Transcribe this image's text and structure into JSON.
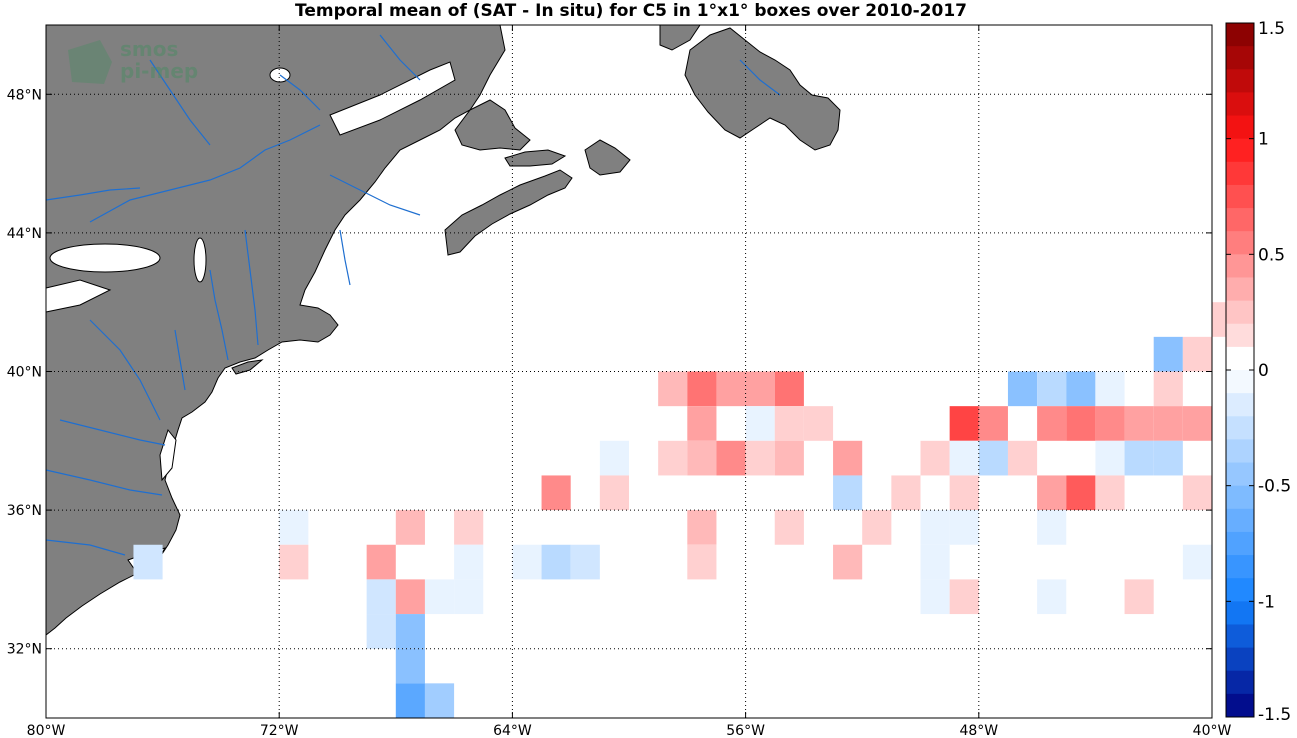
{
  "title": "Temporal mean of (SAT - In situ) for C5 in 1°x1° boxes over 2010-2017",
  "watermark": {
    "line1": "smos",
    "line2": "pi-mep"
  },
  "map": {
    "lon_range": [
      -80,
      -40
    ],
    "lat_range": [
      30,
      50
    ],
    "lon_ticks": [
      -80,
      -72,
      -64,
      -56,
      -48,
      -40
    ],
    "lat_ticks": [
      32,
      36,
      40,
      44,
      48
    ],
    "lon_tick_labels": [
      "80°W",
      "72°W",
      "64°W",
      "56°W",
      "48°W",
      "40°W"
    ],
    "lat_tick_labels": [
      "32°N",
      "36°N",
      "40°N",
      "44°N",
      "48°N"
    ],
    "land_color": "#808080",
    "river_color": "#1f6fd0",
    "ocean_color": "#ffffff"
  },
  "colorbar": {
    "range": [
      -1.5,
      1.5
    ],
    "step": 0.1,
    "tick_values": [
      1.5,
      1,
      0.5,
      0,
      -0.5,
      -1,
      -1.5
    ],
    "tick_labels": [
      "1.5",
      "1",
      "0.5",
      "0",
      "-0.5",
      "-1",
      "-1.5"
    ]
  },
  "chart_data": {
    "type": "heatmap",
    "title": "Temporal mean of (SAT - In situ) for C5 in 1°x1° boxes over 2010-2017",
    "units_note": "",
    "cells": [
      {
        "lon": -58.5,
        "lat": 39.5,
        "value": 0.3
      },
      {
        "lon": -57.5,
        "lat": 39.5,
        "value": 0.6
      },
      {
        "lon": -56.5,
        "lat": 39.5,
        "value": 0.4
      },
      {
        "lon": -55.5,
        "lat": 39.5,
        "value": 0.4
      },
      {
        "lon": -54.5,
        "lat": 39.5,
        "value": 0.6
      },
      {
        "lon": -57.5,
        "lat": 38.5,
        "value": 0.4
      },
      {
        "lon": -55.5,
        "lat": 38.5,
        "value": -0.1
      },
      {
        "lon": -54.5,
        "lat": 38.5,
        "value": 0.2
      },
      {
        "lon": -53.5,
        "lat": 38.5,
        "value": 0.2
      },
      {
        "lon": -60.5,
        "lat": 37.5,
        "value": -0.1
      },
      {
        "lon": -58.5,
        "lat": 37.5,
        "value": 0.2
      },
      {
        "lon": -57.5,
        "lat": 37.5,
        "value": 0.3
      },
      {
        "lon": -56.5,
        "lat": 37.5,
        "value": 0.5
      },
      {
        "lon": -55.5,
        "lat": 37.5,
        "value": 0.2
      },
      {
        "lon": -54.5,
        "lat": 37.5,
        "value": 0.3
      },
      {
        "lon": -52.5,
        "lat": 37.5,
        "value": 0.4
      },
      {
        "lon": -62.5,
        "lat": 36.5,
        "value": 0.5
      },
      {
        "lon": -60.5,
        "lat": 36.5,
        "value": 0.2
      },
      {
        "lon": -52.5,
        "lat": 36.5,
        "value": -0.3
      },
      {
        "lon": -50.5,
        "lat": 36.5,
        "value": 0.2
      },
      {
        "lon": -57.5,
        "lat": 35.5,
        "value": 0.3
      },
      {
        "lon": -54.5,
        "lat": 35.5,
        "value": 0.2
      },
      {
        "lon": -51.5,
        "lat": 35.5,
        "value": 0.2
      },
      {
        "lon": -71.5,
        "lat": 35.5,
        "value": -0.1
      },
      {
        "lon": -67.5,
        "lat": 35.5,
        "value": 0.3
      },
      {
        "lon": -65.5,
        "lat": 35.5,
        "value": 0.2
      },
      {
        "lon": -76.5,
        "lat": 34.5,
        "value": -0.2
      },
      {
        "lon": -71.5,
        "lat": 34.5,
        "value": 0.2
      },
      {
        "lon": -68.5,
        "lat": 34.5,
        "value": 0.4
      },
      {
        "lon": -65.5,
        "lat": 34.5,
        "value": -0.1
      },
      {
        "lon": -63.5,
        "lat": 34.5,
        "value": -0.1
      },
      {
        "lon": -62.5,
        "lat": 34.5,
        "value": -0.3
      },
      {
        "lon": -61.5,
        "lat": 34.5,
        "value": -0.2
      },
      {
        "lon": -57.5,
        "lat": 34.5,
        "value": 0.2
      },
      {
        "lon": -52.5,
        "lat": 34.5,
        "value": 0.3
      },
      {
        "lon": -68.5,
        "lat": 33.5,
        "value": -0.2
      },
      {
        "lon": -67.5,
        "lat": 33.5,
        "value": 0.4
      },
      {
        "lon": -66.5,
        "lat": 33.5,
        "value": -0.1
      },
      {
        "lon": -65.5,
        "lat": 33.5,
        "value": -0.1
      },
      {
        "lon": -68.5,
        "lat": 32.5,
        "value": -0.2
      },
      {
        "lon": -67.5,
        "lat": 32.5,
        "value": -0.5
      },
      {
        "lon": -67.5,
        "lat": 31.5,
        "value": -0.5
      },
      {
        "lon": -67.5,
        "lat": 30.5,
        "value": -0.7
      },
      {
        "lon": -66.5,
        "lat": 30.5,
        "value": -0.4
      },
      {
        "lon": -41.5,
        "lat": 40.5,
        "value": -0.5
      },
      {
        "lon": -40.5,
        "lat": 40.5,
        "value": 0.2
      },
      {
        "lon": -39.5,
        "lat": 41.5,
        "value": 0.2
      },
      {
        "lon": -46.5,
        "lat": 39.5,
        "value": -0.5
      },
      {
        "lon": -45.5,
        "lat": 39.5,
        "value": -0.3
      },
      {
        "lon": -44.5,
        "lat": 39.5,
        "value": -0.5
      },
      {
        "lon": -43.5,
        "lat": 39.5,
        "value": -0.1
      },
      {
        "lon": -41.5,
        "lat": 39.5,
        "value": 0.2
      },
      {
        "lon": -48.5,
        "lat": 38.5,
        "value": 0.8
      },
      {
        "lon": -47.5,
        "lat": 38.5,
        "value": 0.5
      },
      {
        "lon": -45.5,
        "lat": 38.5,
        "value": 0.5
      },
      {
        "lon": -44.5,
        "lat": 38.5,
        "value": 0.6
      },
      {
        "lon": -43.5,
        "lat": 38.5,
        "value": 0.5
      },
      {
        "lon": -42.5,
        "lat": 38.5,
        "value": 0.4
      },
      {
        "lon": -41.5,
        "lat": 38.5,
        "value": 0.4
      },
      {
        "lon": -40.5,
        "lat": 38.5,
        "value": 0.4
      },
      {
        "lon": -49.5,
        "lat": 37.5,
        "value": 0.2
      },
      {
        "lon": -48.5,
        "lat": 37.5,
        "value": -0.1
      },
      {
        "lon": -47.5,
        "lat": 37.5,
        "value": -0.3
      },
      {
        "lon": -46.5,
        "lat": 37.5,
        "value": 0.2
      },
      {
        "lon": -43.5,
        "lat": 37.5,
        "value": -0.1
      },
      {
        "lon": -42.5,
        "lat": 37.5,
        "value": -0.3
      },
      {
        "lon": -41.5,
        "lat": 37.5,
        "value": -0.3
      },
      {
        "lon": -48.5,
        "lat": 36.5,
        "value": 0.2
      },
      {
        "lon": -45.5,
        "lat": 36.5,
        "value": 0.4
      },
      {
        "lon": -44.5,
        "lat": 36.5,
        "value": 0.7
      },
      {
        "lon": -43.5,
        "lat": 36.5,
        "value": 0.2
      },
      {
        "lon": -40.5,
        "lat": 36.5,
        "value": 0.2
      },
      {
        "lon": -49.5,
        "lat": 35.5,
        "value": -0.1
      },
      {
        "lon": -48.5,
        "lat": 35.5,
        "value": -0.1
      },
      {
        "lon": -45.5,
        "lat": 35.5,
        "value": -0.1
      },
      {
        "lon": -49.5,
        "lat": 34.5,
        "value": -0.1
      },
      {
        "lon": -40.5,
        "lat": 34.5,
        "value": -0.1
      },
      {
        "lon": -49.5,
        "lat": 33.5,
        "value": -0.1
      },
      {
        "lon": -48.5,
        "lat": 33.5,
        "value": 0.2
      },
      {
        "lon": -45.5,
        "lat": 33.5,
        "value": -0.1
      },
      {
        "lon": -42.5,
        "lat": 33.5,
        "value": 0.2
      }
    ]
  }
}
